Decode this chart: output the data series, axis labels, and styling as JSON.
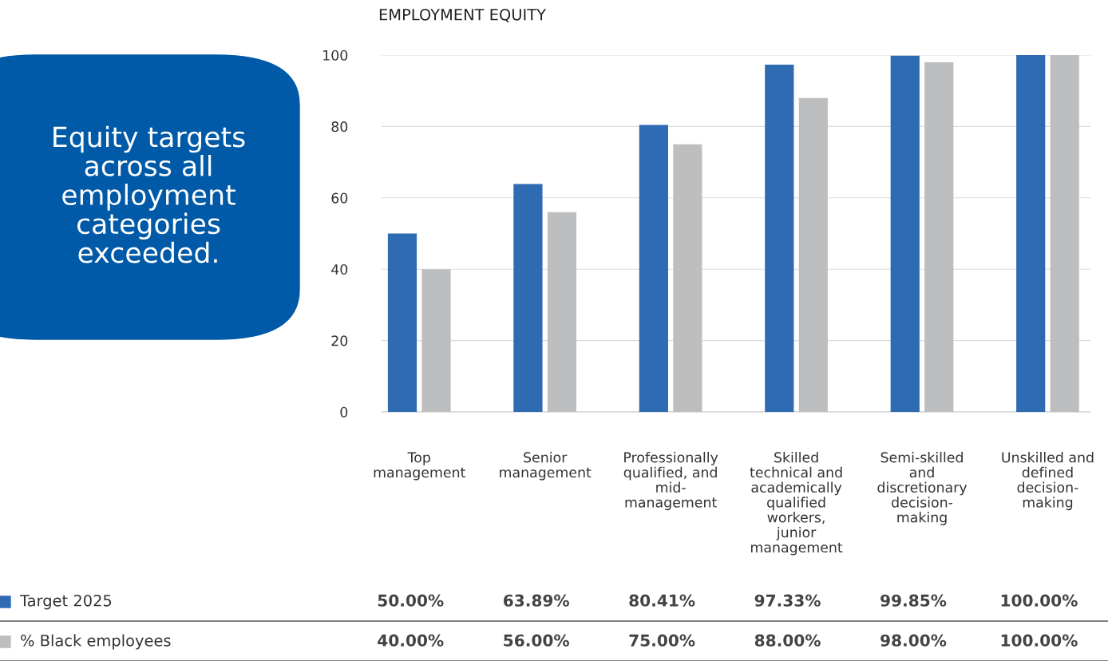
{
  "chart_data": {
    "type": "bar",
    "title": "EMPLOYMENT EQUITY",
    "categories": [
      "Top\nmanagement",
      "Senior\nmanagement",
      "Professionally\nqualified, and\nmid-\nmanagement",
      "Skilled\ntechnical and\nacademically\nqualified\nworkers,\njunior\nmanagement",
      "Semi-skilled\nand\ndiscretionary\ndecision-\nmaking",
      "Unskilled and\ndefined\ndecision-\nmaking"
    ],
    "series": [
      {
        "name": "Target 2025",
        "color": "#2f6bb3",
        "values": [
          50,
          63.89,
          80.41,
          97.33,
          99.85,
          100
        ],
        "value_labels": [
          "50.00%",
          "63.89%",
          "80.41%",
          "97.33%",
          "99.85%",
          "100.00%"
        ]
      },
      {
        "name": "% Black employees",
        "color": "#bdbec0",
        "values": [
          40,
          56,
          75,
          88,
          98,
          100
        ],
        "value_labels": [
          "40.00%",
          "56.00%",
          "75.00%",
          "88.00%",
          "98.00%",
          "100.00%"
        ]
      }
    ],
    "ylim": [
      0,
      100
    ],
    "yticks": [
      0,
      20,
      40,
      60,
      80,
      100
    ],
    "grid": "y",
    "legend": "bottom left",
    "annotations": [
      "Equity targets\nacross all\nemployment\ncategories\nexceeded."
    ]
  }
}
